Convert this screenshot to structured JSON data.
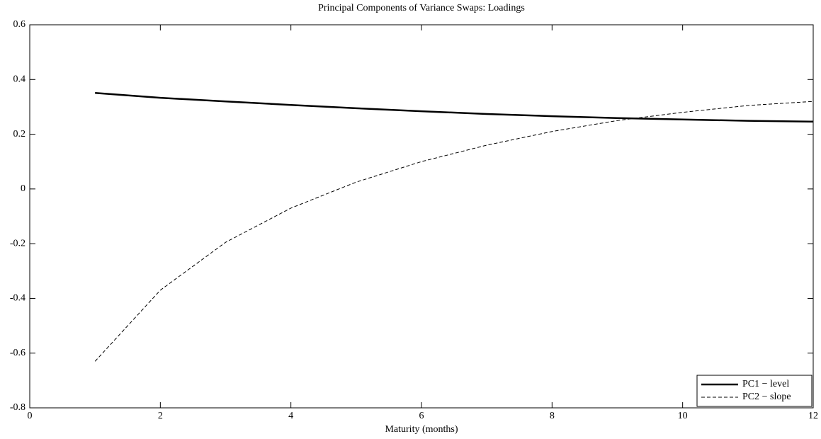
{
  "chart_data": {
    "type": "line",
    "title": "Principal Components of Variance Swaps: Loadings",
    "xlabel": "Maturity (months)",
    "x": [
      1,
      2,
      3,
      4,
      5,
      6,
      7,
      8,
      9,
      10,
      11,
      12
    ],
    "series": [
      {
        "name": "PC1 − level",
        "color": "#000000",
        "style": "solid",
        "values": [
          0.351,
          0.333,
          0.32,
          0.307,
          0.295,
          0.284,
          0.274,
          0.266,
          0.259,
          0.254,
          0.249,
          0.246
        ]
      },
      {
        "name": "PC2 − slope",
        "color": "#000000",
        "style": "dashed",
        "values": [
          -0.63,
          -0.37,
          -0.195,
          -0.07,
          0.025,
          0.1,
          0.16,
          0.21,
          0.25,
          0.28,
          0.305,
          0.32
        ]
      }
    ],
    "xlim": [
      0,
      12
    ],
    "xticks": [
      0,
      2,
      4,
      6,
      8,
      10,
      12
    ],
    "ylim": [
      -0.8,
      0.6
    ],
    "yticks": [
      -0.8,
      -0.6,
      -0.4,
      -0.2,
      0,
      0.2,
      0.4,
      0.6
    ],
    "grid": false,
    "legend": "lower right"
  }
}
